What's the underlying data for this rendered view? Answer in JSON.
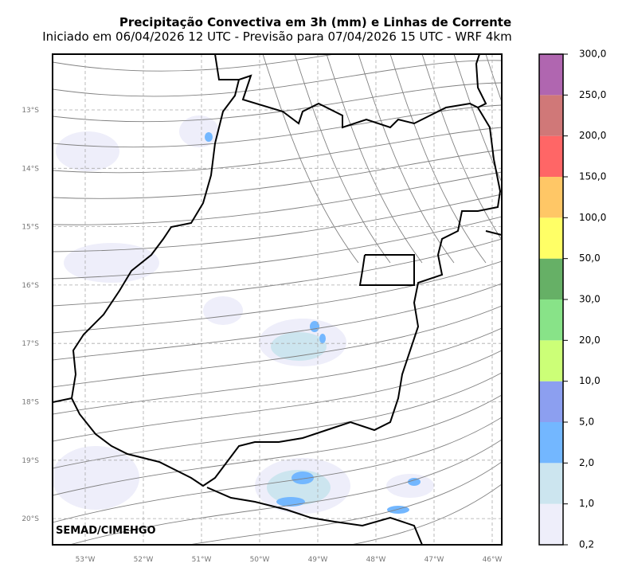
{
  "header": {
    "title": "Precipitação Convectiva em 3h (mm) e Linhas de Corrente",
    "subtitle": "Iniciado em 06/04/2026 12 UTC - Previsão para 07/04/2026 15 UTC - WRF 4km"
  },
  "map": {
    "lat_labels": [
      "13°S",
      "14°S",
      "15°S",
      "16°S",
      "17°S",
      "18°S",
      "19°S",
      "20°S"
    ],
    "lon_labels": [
      "53°W",
      "52°W",
      "51°W",
      "50°W",
      "49°W",
      "48°W",
      "47°W",
      "46°W"
    ],
    "credit": "SEMAD/CIMEHGO"
  },
  "colorbar": {
    "labels": [
      "0,2",
      "1,0",
      "2,0",
      "5,0",
      "10,0",
      "20,0",
      "30,0",
      "50,0",
      "100,0",
      "150,0",
      "200,0",
      "250,0",
      "300,0"
    ],
    "colors": [
      "#eeeefa",
      "#cce5ef",
      "#73b7ff",
      "#8c9ff0",
      "#ccff77",
      "#88e388",
      "#66b066",
      "#ffff66",
      "#ffc766",
      "#ff6666",
      "#d07878",
      "#b066b0"
    ]
  }
}
